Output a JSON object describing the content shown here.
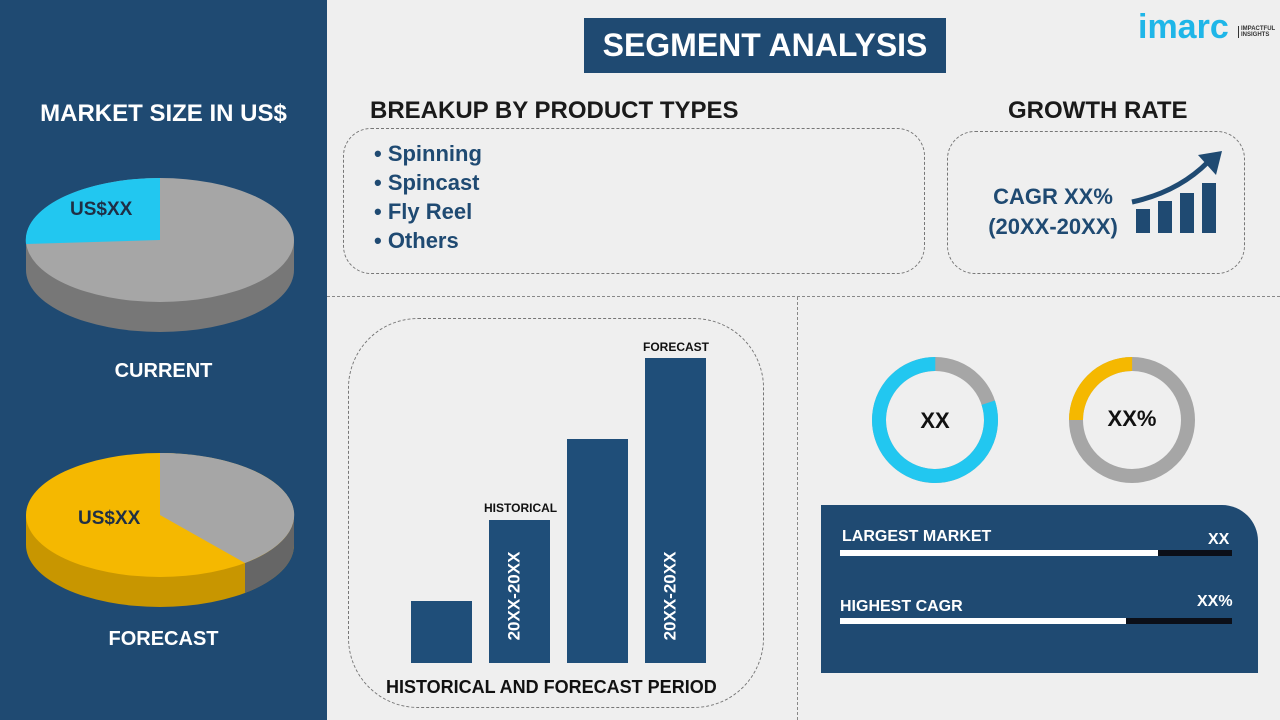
{
  "title": "SEGMENT ANALYSIS",
  "logo": {
    "text": "imarc",
    "tagline": "IMPACTFUL INSIGHTS"
  },
  "left": {
    "heading": "MARKET SIZE IN US$",
    "current": {
      "label": "CURRENT",
      "value": "US$XX",
      "share": 0.25,
      "color": "#22c7f0"
    },
    "forecast": {
      "label": "FORECAST",
      "value": "US$XX",
      "share": 0.6,
      "color": "#f5b800"
    }
  },
  "breakup": {
    "heading": "BREAKUP BY PRODUCT TYPES",
    "items": [
      "• Spinning",
      "• Spincast",
      "• Fly Reel",
      "• Others"
    ]
  },
  "growth": {
    "heading": "GROWTH RATE",
    "line1": "CAGR XX%",
    "line2": "(20XX-20XX)"
  },
  "bars": {
    "historical_label": "HISTORICAL",
    "forecast_label": "FORECAST",
    "historical_period": "20XX-20XX",
    "forecast_period": "20XX-20XX",
    "axis_label": "HISTORICAL AND FORECAST PERIOD"
  },
  "donuts": [
    {
      "value": "XX",
      "share": 0.8,
      "color": "#22c7f0"
    },
    {
      "value": "XX%",
      "share": 0.25,
      "color": "#f5b800"
    }
  ],
  "metrics": [
    {
      "label": "LARGEST MARKET",
      "value": "XX",
      "fill": 0.81
    },
    {
      "label": "HIGHEST CAGR",
      "value": "XX%",
      "fill": 0.73
    }
  ],
  "colors": {
    "navy": "#1f4a72",
    "cyan": "#22c7f0",
    "yellow": "#f5b800",
    "gray": "#a6a6a6"
  }
}
